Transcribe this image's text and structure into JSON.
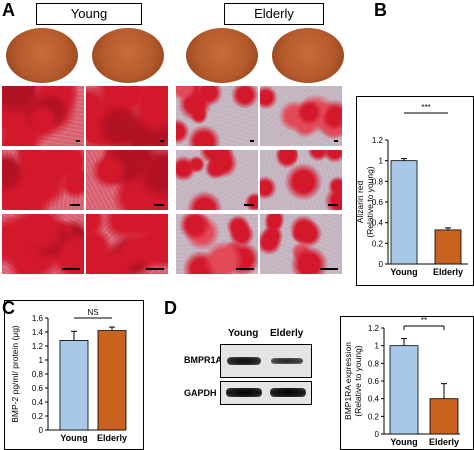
{
  "panels": {
    "a": {
      "letter": "A",
      "groups": [
        "Young",
        "Elderly"
      ]
    },
    "b": {
      "letter": "B"
    },
    "c": {
      "letter": "C"
    },
    "d": {
      "letter": "D",
      "blot": {
        "columns": [
          "Young",
          "Elderly"
        ],
        "rows": [
          "BMPR1A",
          "GAPDH"
        ]
      }
    }
  },
  "chart_data": [
    {
      "id": "B",
      "type": "bar",
      "categories": [
        "Young",
        "Elderly"
      ],
      "values": [
        1.0,
        0.33
      ],
      "errors": [
        0.02,
        0.02
      ],
      "colors": [
        "#a8c8e8",
        "#c8621e"
      ],
      "ylabel": "Alizarin red\n(Relative to young)",
      "ylim": [
        0,
        1.2
      ],
      "yticks": [
        0,
        0.2,
        0.4,
        0.6,
        0.8,
        1,
        1.2
      ],
      "annotation": "***"
    },
    {
      "id": "C",
      "type": "bar",
      "categories": [
        "Young",
        "Elderly"
      ],
      "values": [
        1.28,
        1.42
      ],
      "errors": [
        0.13,
        0.05
      ],
      "colors": [
        "#a8c8e8",
        "#c8621e"
      ],
      "ylabel": "BMP-2 pg/ml/ protein (μg)",
      "ylim": [
        0,
        1.6
      ],
      "yticks": [
        0,
        0.2,
        0.4,
        0.6,
        0.8,
        1,
        1.2,
        1.4,
        1.6
      ],
      "annotation": "NS"
    },
    {
      "id": "D",
      "type": "bar",
      "categories": [
        "Young",
        "Elderly"
      ],
      "values": [
        1.0,
        0.4
      ],
      "errors": [
        0.08,
        0.17
      ],
      "colors": [
        "#a8c8e8",
        "#c8621e"
      ],
      "ylabel": "BMP1RA expression\n(Relative to young)",
      "ylim": [
        0,
        1.2
      ],
      "yticks": [
        0,
        0.2,
        0.4,
        0.6,
        0.8,
        1,
        1.2
      ],
      "annotation": "**"
    }
  ]
}
